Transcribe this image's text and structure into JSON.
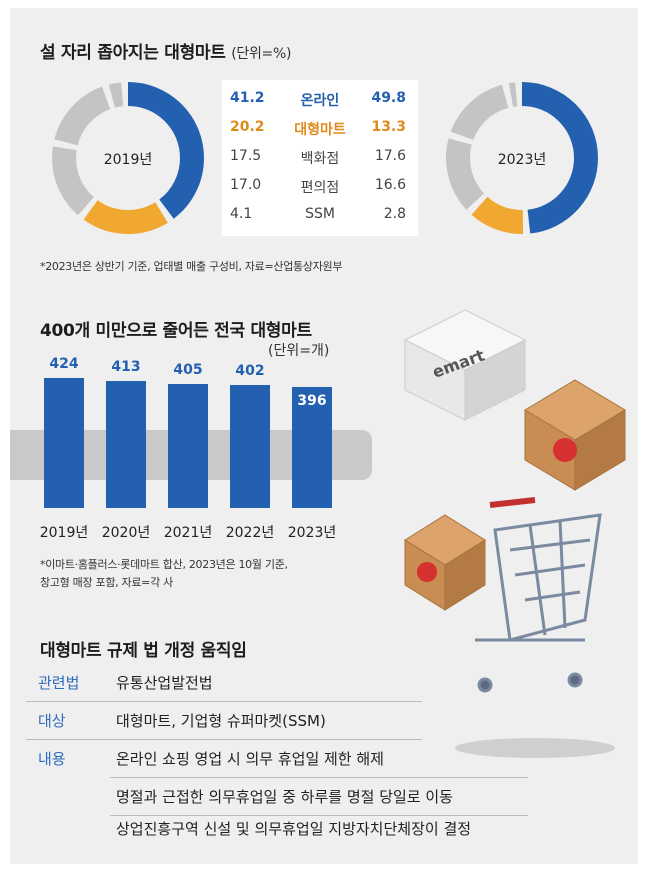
{
  "section1": {
    "title": "설 자리 좁아지는 대형마트",
    "unit": "(단위=%)",
    "year_left": "2019년",
    "year_right": "2023년",
    "note": "*2023년은 상반기 기준, 업태별 매출 구성비, 자료=산업통상자원부"
  },
  "section2": {
    "title": "400개 미만으로 줄어든 전국 대형마트",
    "unit": "(단위=개)",
    "note_line1": "*이마트·홈플러스·롯데마트 합산, 2023년은 10월 기준,",
    "note_line2": "창고형 매장 포함, 자료=각 사"
  },
  "section3": {
    "title": "대형마트 규제 법 개정 움직임",
    "rows": [
      {
        "key": "관련법",
        "value": "유통산업발전법"
      },
      {
        "key": "대상",
        "value": "대형마트, 기업형 슈퍼마켓(SSM)"
      },
      {
        "key": "내용",
        "value": "온라인 쇼핑 영업 시 의무 휴업일 제한 해제"
      },
      {
        "key": "",
        "value": "명절과 근접한 의무휴업일 중 하루를 명절 당일로 이동"
      },
      {
        "key": "",
        "value": "상업진흥구역 신설 및 의무휴업일 지방자치단체장이 결정"
      }
    ]
  },
  "illustration": {
    "box_logo_text": "emart"
  },
  "colors": {
    "online": "#2460b0",
    "hypermarket": "#f0a830",
    "other": "#c4c4c4",
    "bar": "#2460b0",
    "band": "#c9c9c9"
  },
  "chart_data": [
    {
      "type": "pie",
      "title": "설 자리 좁아지는 대형마트",
      "unit": "(단위=%)",
      "categories": [
        "온라인",
        "대형마트",
        "백화점",
        "편의점",
        "SSM"
      ],
      "series": [
        {
          "name": "2019년",
          "values": [
            41.2,
            20.2,
            17.5,
            17.0,
            4.1
          ]
        },
        {
          "name": "2023년",
          "values": [
            49.8,
            13.3,
            17.6,
            16.6,
            2.8
          ]
        }
      ],
      "value_labels": [
        [
          "41.2",
          "20.2",
          "17.5",
          "17.0",
          "4.1"
        ],
        [
          "49.8",
          "13.3",
          "17.6",
          "16.6",
          "2.8"
        ]
      ]
    },
    {
      "type": "bar",
      "title": "400개 미만으로 줄어든 전국 대형마트",
      "unit": "(단위=개)",
      "categories": [
        "2019년",
        "2020년",
        "2021년",
        "2022년",
        "2023년"
      ],
      "values": [
        424,
        413,
        405,
        402,
        396
      ]
    }
  ]
}
